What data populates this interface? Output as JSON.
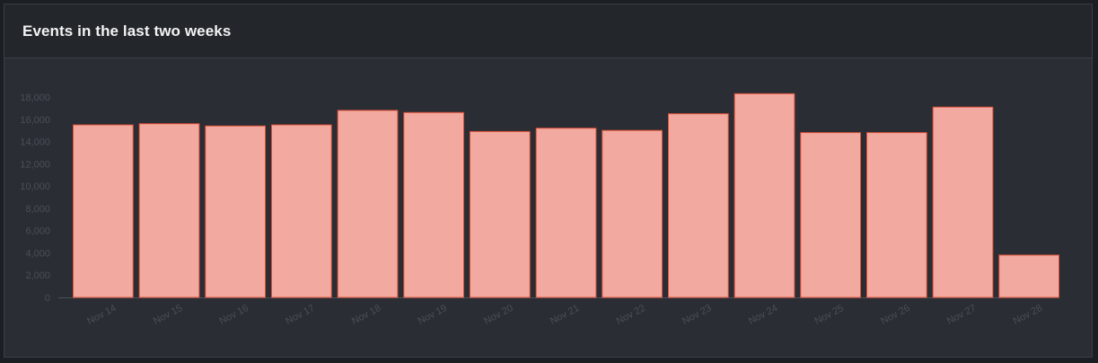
{
  "panel": {
    "title": "Events in the last two weeks"
  },
  "chart_data": {
    "type": "bar",
    "title": "Events in the last two weeks",
    "xlabel": "",
    "ylabel": "",
    "categories": [
      "Nov 14",
      "Nov 15",
      "Nov 16",
      "Nov 17",
      "Nov 18",
      "Nov 19",
      "Nov 20",
      "Nov 21",
      "Nov 22",
      "Nov 23",
      "Nov 24",
      "Nov 25",
      "Nov 26",
      "Nov 27",
      "Nov 28"
    ],
    "values": [
      15500,
      15600,
      15400,
      15500,
      16800,
      16600,
      14900,
      15200,
      15000,
      16500,
      18300,
      14800,
      14800,
      17100,
      3800
    ],
    "ylim": [
      0,
      18000
    ],
    "yticks": [
      0,
      2000,
      4000,
      6000,
      8000,
      10000,
      12000,
      14000,
      16000,
      18000
    ],
    "ytick_labels": [
      "0",
      "2,000",
      "4,000",
      "6,000",
      "8,000",
      "10,000",
      "12,000",
      "14,000",
      "16,000",
      "18,000"
    ],
    "grid": false,
    "colors": {
      "bar_fill": "#f2aaa0",
      "bar_stroke": "#e0503a",
      "tick_text": "#4a4f57",
      "axis": "#4a4f57"
    }
  }
}
